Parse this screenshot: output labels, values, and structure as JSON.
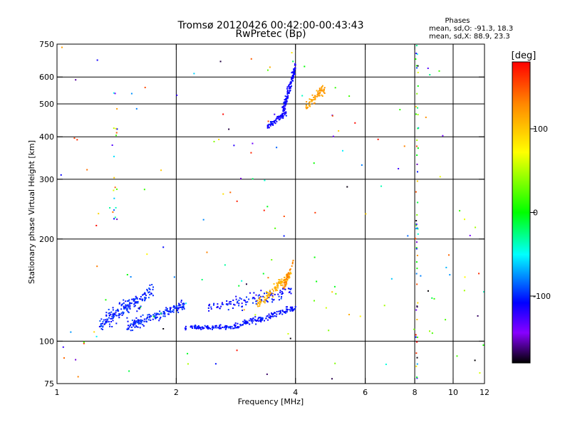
{
  "chart_data": {
    "type": "scatter",
    "title": "Tromsø 20120426 00:42:00-00:43:43",
    "subtitle": "RwPretec (Bp)",
    "xlabel": "Frequency [MHz]",
    "ylabel": "Stationary phase Virtual Height [km]",
    "x_scale": "log",
    "y_scale": "log",
    "xlim": [
      1,
      12
    ],
    "ylim": [
      75,
      750
    ],
    "x_ticks": [
      1,
      2,
      4,
      6,
      8,
      10,
      12
    ],
    "x_tick_labels": [
      "1",
      "2",
      "4",
      "6",
      "8",
      "10",
      "12"
    ],
    "y_ticks": [
      75,
      100,
      200,
      300,
      400,
      500,
      600,
      750
    ],
    "y_tick_labels": [
      "75",
      "100",
      "200",
      "300",
      "400",
      "500",
      "600",
      "750"
    ],
    "grid_x": [
      2,
      4,
      6,
      8,
      10
    ],
    "grid_y": [
      100,
      200,
      300,
      400,
      500,
      600
    ],
    "grid": true,
    "phases_header": "Phases",
    "phases_stats": [
      "mean, sd,O: -91.3, 18.3",
      "mean, sd,X:  88.9, 23.3"
    ],
    "colorbar": {
      "label": "[deg]",
      "min": -180,
      "max": 180,
      "ticks": [
        100,
        0,
        -100
      ],
      "tick_labels": [
        "100",
        "0",
        "-100"
      ],
      "colors": [
        "#ff0000",
        "#ff8800",
        "#ffff00",
        "#00ff00",
        "#00ffff",
        "#0000ff",
        "#8800ff",
        "#000000"
      ]
    },
    "series": [
      {
        "color_meaning": "phase_deg",
        "clusters": [
          {
            "region": "E-layer O-mode",
            "f_range": [
              1.28,
              2.15
            ],
            "h_range": [
              108,
              150
            ],
            "phase_mean": -100
          },
          {
            "region": "F1 O-mode",
            "f_range": [
              2.2,
              4.0
            ],
            "h_range": [
              106,
              145
            ],
            "phase_mean": -105
          },
          {
            "region": "F1 X-mode",
            "f_range": [
              3.2,
              4.0
            ],
            "h_range": [
              128,
              172
            ],
            "phase_mean": 110
          },
          {
            "region": "F2 O-mode",
            "f_range": [
              3.4,
              4.0
            ],
            "h_range": [
              430,
              650
            ],
            "phase_mean": -110
          },
          {
            "region": "F2 X-mode",
            "f_range": [
              4.2,
              4.8
            ],
            "h_range": [
              480,
              600
            ],
            "phase_mean": 120
          }
        ]
      }
    ]
  }
}
